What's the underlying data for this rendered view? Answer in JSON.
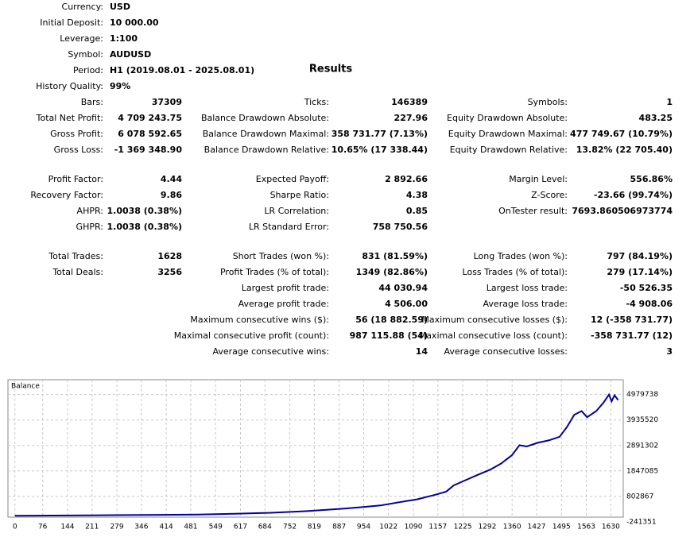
{
  "summary": [
    [
      "Currency:",
      "USD"
    ],
    [
      "Initial Deposit:",
      "10 000.00"
    ],
    [
      "Leverage:",
      "1:100"
    ],
    [
      "Symbol:",
      "AUDUSD"
    ],
    [
      "Period:",
      "H1 (2019.08.01 - 2025.08.01)"
    ],
    [
      "History Quality:",
      "99%"
    ]
  ],
  "results_title": "Results",
  "groups": [
    {
      "rows": [
        [
          [
            "Bars:",
            "37309"
          ],
          [
            "Ticks:",
            "146389"
          ],
          [
            "Symbols:",
            "1"
          ]
        ],
        [
          [
            "Total Net Profit:",
            "4 709 243.75"
          ],
          [
            "Balance Drawdown Absolute:",
            "227.96"
          ],
          [
            "Equity Drawdown Absolute:",
            "483.25"
          ]
        ],
        [
          [
            "Gross Profit:",
            "6 078 592.65"
          ],
          [
            "Balance Drawdown Maximal:",
            "358 731.77 (7.13%)"
          ],
          [
            "Equity Drawdown Maximal:",
            "477 749.67 (10.79%)"
          ]
        ],
        [
          [
            "Gross Loss:",
            "-1 369 348.90"
          ],
          [
            "Balance Drawdown Relative:",
            "10.65% (17 338.44)"
          ],
          [
            "Equity Drawdown Relative:",
            "13.82% (22 705.40)"
          ]
        ]
      ]
    },
    {
      "rows": [
        [
          [
            "Profit Factor:",
            "4.44"
          ],
          [
            "Expected Payoff:",
            "2 892.66"
          ],
          [
            "Margin Level:",
            "556.86%"
          ]
        ],
        [
          [
            "Recovery Factor:",
            "9.86"
          ],
          [
            "Sharpe Ratio:",
            "4.38"
          ],
          [
            "Z-Score:",
            "-23.66 (99.74%)"
          ]
        ],
        [
          [
            "AHPR:",
            "1.0038 (0.38%)"
          ],
          [
            "LR Correlation:",
            "0.85"
          ],
          [
            "OnTester result:",
            "7693.860506973774"
          ]
        ],
        [
          [
            "GHPR:",
            "1.0038 (0.38%)"
          ],
          [
            "LR Standard Error:",
            "758 750.56"
          ],
          null
        ]
      ]
    },
    {
      "rows": [
        [
          [
            "Total Trades:",
            "1628"
          ],
          [
            "Short Trades (won %):",
            "831 (81.59%)"
          ],
          [
            "Long Trades (won %):",
            "797 (84.19%)"
          ]
        ],
        [
          [
            "Total Deals:",
            "3256"
          ],
          [
            "Profit Trades (% of total):",
            "1349 (82.86%)"
          ],
          [
            "Loss Trades (% of total):",
            "279 (17.14%)"
          ]
        ],
        [
          null,
          [
            "Largest profit trade:",
            "44 030.94"
          ],
          [
            "Largest loss trade:",
            "-50 526.35"
          ]
        ],
        [
          null,
          [
            "Average profit trade:",
            "4 506.00"
          ],
          [
            "Average loss trade:",
            "-4 908.06"
          ]
        ],
        [
          null,
          [
            "Maximum consecutive wins ($):",
            "56 (18 882.59)"
          ],
          [
            "Maximum consecutive losses ($):",
            "12 (-358 731.77)"
          ]
        ],
        [
          null,
          [
            "Maximal consecutive profit (count):",
            "987 115.88 (54)"
          ],
          [
            "Maximal consecutive loss (count):",
            "-358 731.77 (12)"
          ]
        ],
        [
          null,
          [
            "Average consecutive wins:",
            "14"
          ],
          [
            "Average consecutive losses:",
            "3"
          ]
        ]
      ]
    }
  ],
  "chart_data": {
    "type": "line",
    "title": "Balance",
    "color": "#0000a0",
    "grid": true,
    "x": [
      0,
      100,
      200,
      300,
      400,
      500,
      600,
      700,
      800,
      900,
      950,
      1000,
      1050,
      1100,
      1150,
      1180,
      1200,
      1230,
      1260,
      1300,
      1330,
      1360,
      1380,
      1400,
      1430,
      1460,
      1490,
      1510,
      1530,
      1550,
      1565,
      1590,
      1610,
      1625,
      1632,
      1640,
      1650
    ],
    "values": [
      10000,
      15000,
      22000,
      35000,
      45000,
      60000,
      90000,
      130000,
      200000,
      300000,
      360000,
      430000,
      560000,
      680000,
      870000,
      1000000,
      1250000,
      1450000,
      1650000,
      1900000,
      2150000,
      2500000,
      2900000,
      2850000,
      3000000,
      3100000,
      3250000,
      3650000,
      4150000,
      4300000,
      4050000,
      4300000,
      4650000,
      4980000,
      4700000,
      4950000,
      4750000
    ],
    "xlim": [
      -19,
      1664
    ],
    "ylim": [
      -49000,
      5588000
    ],
    "xticks": [
      0,
      76,
      144,
      211,
      279,
      346,
      414,
      481,
      549,
      617,
      684,
      752,
      819,
      887,
      954,
      1022,
      1090,
      1157,
      1225,
      1292,
      1360,
      1427,
      1495,
      1563,
      1630
    ],
    "yticks": [
      -241351,
      802867,
      1847085,
      2891302,
      3935520,
      4979738
    ]
  }
}
